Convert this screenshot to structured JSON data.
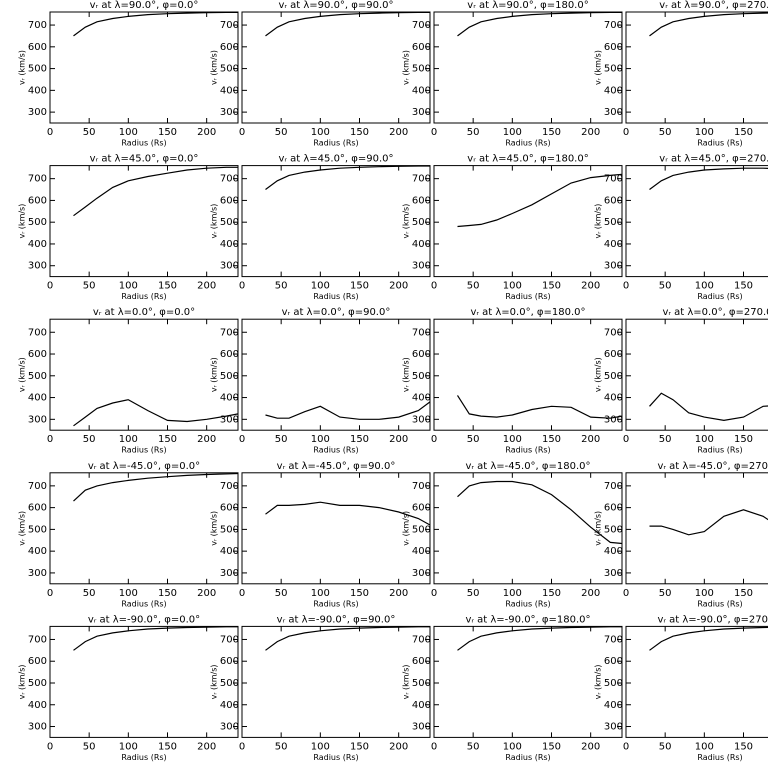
{
  "chart_data": [
    {
      "type": "line",
      "title": "vᵣ at λ=90.0°, φ=0.0°",
      "xlabel": "Radius (Rs)",
      "ylabel": "vᵣ (km/s)",
      "x": [
        30,
        45,
        60,
        80,
        100,
        125,
        150,
        175,
        200,
        225,
        240
      ],
      "values": [
        650,
        690,
        715,
        730,
        740,
        748,
        752,
        755,
        757,
        758,
        758
      ],
      "color": "#000000",
      "xlim": [
        0,
        240
      ],
      "ylim": [
        250,
        760
      ],
      "xticks": [
        0,
        50,
        100,
        150,
        200
      ],
      "yticks": [
        300,
        400,
        500,
        600,
        700
      ]
    },
    {
      "type": "line",
      "title": "vᵣ at λ=90.0°, φ=90.0°",
      "xlabel": "Radius (Rs)",
      "ylabel": "vᵣ (km/s)",
      "x": [
        30,
        45,
        60,
        80,
        100,
        125,
        150,
        175,
        200,
        225,
        240
      ],
      "values": [
        650,
        690,
        715,
        730,
        740,
        748,
        752,
        755,
        757,
        758,
        758
      ],
      "color": "#000000",
      "xlim": [
        0,
        240
      ],
      "ylim": [
        250,
        760
      ],
      "xticks": [
        0,
        50,
        100,
        150,
        200
      ],
      "yticks": [
        300,
        400,
        500,
        600,
        700
      ]
    },
    {
      "type": "line",
      "title": "vᵣ at λ=90.0°, φ=180.0°",
      "xlabel": "Radius (Rs)",
      "ylabel": "vᵣ (km/s)",
      "x": [
        30,
        45,
        60,
        80,
        100,
        125,
        150,
        175,
        200,
        225,
        240
      ],
      "values": [
        650,
        690,
        715,
        730,
        740,
        748,
        752,
        755,
        757,
        758,
        758
      ],
      "color": "#000000",
      "xlim": [
        0,
        240
      ],
      "ylim": [
        250,
        760
      ],
      "xticks": [
        0,
        50,
        100,
        150,
        200
      ],
      "yticks": [
        300,
        400,
        500,
        600,
        700
      ]
    },
    {
      "type": "line",
      "title": "vᵣ at λ=90.0°, φ=270.0°",
      "xlabel": "Radius (Rs)",
      "ylabel": "vᵣ (km/s)",
      "x": [
        30,
        45,
        60,
        80,
        100,
        125,
        150,
        175,
        200,
        225,
        240
      ],
      "values": [
        650,
        690,
        715,
        730,
        740,
        748,
        752,
        755,
        757,
        758,
        758
      ],
      "color": "#000000",
      "xlim": [
        0,
        240
      ],
      "ylim": [
        250,
        760
      ],
      "xticks": [
        0,
        50,
        100,
        150,
        200
      ],
      "yticks": [
        300,
        400,
        500,
        600,
        700
      ]
    },
    {
      "type": "line",
      "title": "vᵣ at λ=45.0°, φ=0.0°",
      "xlabel": "Radius (Rs)",
      "ylabel": "vᵣ (km/s)",
      "x": [
        30,
        45,
        60,
        80,
        100,
        125,
        150,
        175,
        200,
        225,
        240
      ],
      "values": [
        530,
        570,
        610,
        660,
        690,
        710,
        725,
        740,
        748,
        752,
        752
      ],
      "color": "#000000",
      "xlim": [
        0,
        240
      ],
      "ylim": [
        250,
        760
      ],
      "xticks": [
        0,
        50,
        100,
        150,
        200
      ],
      "yticks": [
        300,
        400,
        500,
        600,
        700
      ]
    },
    {
      "type": "line",
      "title": "vᵣ at λ=45.0°, φ=90.0°",
      "xlabel": "Radius (Rs)",
      "ylabel": "vᵣ (km/s)",
      "x": [
        30,
        45,
        60,
        80,
        100,
        125,
        150,
        175,
        200,
        225,
        240
      ],
      "values": [
        650,
        690,
        715,
        730,
        740,
        748,
        752,
        755,
        757,
        758,
        758
      ],
      "color": "#000000",
      "xlim": [
        0,
        240
      ],
      "ylim": [
        250,
        760
      ],
      "xticks": [
        0,
        50,
        100,
        150,
        200
      ],
      "yticks": [
        300,
        400,
        500,
        600,
        700
      ]
    },
    {
      "type": "line",
      "title": "vᵣ at λ=45.0°, φ=180.0°",
      "xlabel": "Radius (Rs)",
      "ylabel": "vᵣ (km/s)",
      "x": [
        30,
        45,
        60,
        80,
        100,
        125,
        150,
        175,
        200,
        225,
        240
      ],
      "values": [
        480,
        485,
        490,
        510,
        540,
        580,
        630,
        680,
        705,
        715,
        720
      ],
      "color": "#000000",
      "xlim": [
        0,
        240
      ],
      "ylim": [
        250,
        760
      ],
      "xticks": [
        0,
        50,
        100,
        150,
        200
      ],
      "yticks": [
        300,
        400,
        500,
        600,
        700
      ]
    },
    {
      "type": "line",
      "title": "vᵣ at λ=45.0°, φ=270.0°",
      "xlabel": "Radius (Rs)",
      "ylabel": "vᵣ (km/s)",
      "x": [
        30,
        45,
        60,
        80,
        100,
        125,
        150,
        175,
        200,
        225,
        240
      ],
      "values": [
        650,
        690,
        715,
        730,
        740,
        745,
        748,
        748,
        745,
        740,
        735
      ],
      "color": "#000000",
      "xlim": [
        0,
        240
      ],
      "ylim": [
        250,
        760
      ],
      "xticks": [
        0,
        50,
        100,
        150,
        200
      ],
      "yticks": [
        300,
        400,
        500,
        600,
        700
      ]
    },
    {
      "type": "line",
      "title": "vᵣ at λ=0.0°, φ=0.0°",
      "xlabel": "Radius (Rs)",
      "ylabel": "vᵣ (km/s)",
      "x": [
        30,
        45,
        60,
        80,
        100,
        125,
        150,
        175,
        200,
        225,
        240
      ],
      "values": [
        270,
        310,
        350,
        375,
        390,
        340,
        295,
        290,
        300,
        315,
        325
      ],
      "color": "#000000",
      "xlim": [
        0,
        240
      ],
      "ylim": [
        250,
        760
      ],
      "xticks": [
        0,
        50,
        100,
        150,
        200
      ],
      "yticks": [
        300,
        400,
        500,
        600,
        700
      ]
    },
    {
      "type": "line",
      "title": "vᵣ at λ=0.0°, φ=90.0°",
      "xlabel": "Radius (Rs)",
      "ylabel": "vᵣ (km/s)",
      "x": [
        30,
        45,
        60,
        80,
        100,
        125,
        150,
        175,
        200,
        225,
        240
      ],
      "values": [
        320,
        305,
        305,
        335,
        360,
        310,
        300,
        300,
        310,
        340,
        380
      ],
      "color": "#000000",
      "xlim": [
        0,
        240
      ],
      "ylim": [
        250,
        760
      ],
      "xticks": [
        0,
        50,
        100,
        150,
        200
      ],
      "yticks": [
        300,
        400,
        500,
        600,
        700
      ]
    },
    {
      "type": "line",
      "title": "vᵣ at λ=0.0°, φ=180.0°",
      "xlabel": "Radius (Rs)",
      "ylabel": "vᵣ (km/s)",
      "x": [
        30,
        45,
        60,
        80,
        100,
        125,
        150,
        175,
        200,
        225,
        240
      ],
      "values": [
        410,
        325,
        315,
        310,
        320,
        345,
        360,
        355,
        310,
        305,
        315
      ],
      "color": "#000000",
      "xlim": [
        0,
        240
      ],
      "ylim": [
        250,
        760
      ],
      "xticks": [
        0,
        50,
        100,
        150,
        200
      ],
      "yticks": [
        300,
        400,
        500,
        600,
        700
      ]
    },
    {
      "type": "line",
      "title": "vᵣ at λ=0.0°, φ=270.0°",
      "xlabel": "Radius (Rs)",
      "ylabel": "vᵣ (km/s)",
      "x": [
        30,
        45,
        60,
        80,
        100,
        125,
        150,
        175,
        200,
        225,
        240
      ],
      "values": [
        360,
        420,
        390,
        330,
        310,
        295,
        310,
        360,
        365,
        345,
        340
      ],
      "color": "#000000",
      "xlim": [
        0,
        240
      ],
      "ylim": [
        250,
        760
      ],
      "xticks": [
        0,
        50,
        100,
        150,
        200
      ],
      "yticks": [
        300,
        400,
        500,
        600,
        700
      ]
    },
    {
      "type": "line",
      "title": "vᵣ at λ=-45.0°, φ=0.0°",
      "xlabel": "Radius (Rs)",
      "ylabel": "vᵣ (km/s)",
      "x": [
        30,
        45,
        60,
        80,
        100,
        125,
        150,
        175,
        200,
        225,
        240
      ],
      "values": [
        630,
        680,
        700,
        715,
        725,
        735,
        742,
        748,
        752,
        755,
        757
      ],
      "color": "#000000",
      "xlim": [
        0,
        240
      ],
      "ylim": [
        250,
        760
      ],
      "xticks": [
        0,
        50,
        100,
        150,
        200
      ],
      "yticks": [
        300,
        400,
        500,
        600,
        700
      ]
    },
    {
      "type": "line",
      "title": "vᵣ at λ=-45.0°, φ=90.0°",
      "xlabel": "Radius (Rs)",
      "ylabel": "vᵣ (km/s)",
      "x": [
        30,
        45,
        60,
        80,
        100,
        125,
        150,
        175,
        200,
        225,
        240
      ],
      "values": [
        570,
        610,
        610,
        615,
        625,
        610,
        610,
        600,
        580,
        550,
        520
      ],
      "color": "#000000",
      "xlim": [
        0,
        240
      ],
      "ylim": [
        250,
        760
      ],
      "xticks": [
        0,
        50,
        100,
        150,
        200
      ],
      "yticks": [
        300,
        400,
        500,
        600,
        700
      ]
    },
    {
      "type": "line",
      "title": "vᵣ at λ=-45.0°, φ=180.0°",
      "xlabel": "Radius (Rs)",
      "ylabel": "vᵣ (km/s)",
      "x": [
        30,
        45,
        60,
        80,
        100,
        125,
        150,
        175,
        200,
        225,
        240
      ],
      "values": [
        650,
        700,
        715,
        720,
        720,
        705,
        660,
        590,
        510,
        440,
        435
      ],
      "color": "#000000",
      "xlim": [
        0,
        240
      ],
      "ylim": [
        250,
        760
      ],
      "xticks": [
        0,
        50,
        100,
        150,
        200
      ],
      "yticks": [
        300,
        400,
        500,
        600,
        700
      ]
    },
    {
      "type": "line",
      "title": "vᵣ at λ=-45.0°, φ=270.0°",
      "xlabel": "Radius (Rs)",
      "ylabel": "vᵣ (km/s)",
      "x": [
        30,
        45,
        60,
        80,
        100,
        125,
        150,
        175,
        200,
        225,
        240
      ],
      "values": [
        515,
        515,
        500,
        475,
        490,
        560,
        590,
        560,
        500,
        480,
        485
      ],
      "color": "#000000",
      "xlim": [
        0,
        240
      ],
      "ylim": [
        250,
        760
      ],
      "xticks": [
        0,
        50,
        100,
        150,
        200
      ],
      "yticks": [
        300,
        400,
        500,
        600,
        700
      ]
    },
    {
      "type": "line",
      "title": "vᵣ at λ=-90.0°, φ=0.0°",
      "xlabel": "Radius (Rs)",
      "ylabel": "vᵣ (km/s)",
      "x": [
        30,
        45,
        60,
        80,
        100,
        125,
        150,
        175,
        200,
        225,
        240
      ],
      "values": [
        650,
        690,
        715,
        730,
        740,
        748,
        752,
        755,
        757,
        758,
        758
      ],
      "color": "#000000",
      "xlim": [
        0,
        240
      ],
      "ylim": [
        250,
        760
      ],
      "xticks": [
        0,
        50,
        100,
        150,
        200
      ],
      "yticks": [
        300,
        400,
        500,
        600,
        700
      ]
    },
    {
      "type": "line",
      "title": "vᵣ at λ=-90.0°, φ=90.0°",
      "xlabel": "Radius (Rs)",
      "ylabel": "vᵣ (km/s)",
      "x": [
        30,
        45,
        60,
        80,
        100,
        125,
        150,
        175,
        200,
        225,
        240
      ],
      "values": [
        650,
        690,
        715,
        730,
        740,
        748,
        752,
        755,
        757,
        758,
        758
      ],
      "color": "#000000",
      "xlim": [
        0,
        240
      ],
      "ylim": [
        250,
        760
      ],
      "xticks": [
        0,
        50,
        100,
        150,
        200
      ],
      "yticks": [
        300,
        400,
        500,
        600,
        700
      ]
    },
    {
      "type": "line",
      "title": "vᵣ at λ=-90.0°, φ=180.0°",
      "xlabel": "Radius (Rs)",
      "ylabel": "vᵣ (km/s)",
      "x": [
        30,
        45,
        60,
        80,
        100,
        125,
        150,
        175,
        200,
        225,
        240
      ],
      "values": [
        650,
        690,
        715,
        730,
        740,
        748,
        752,
        755,
        757,
        758,
        758
      ],
      "color": "#000000",
      "xlim": [
        0,
        240
      ],
      "ylim": [
        250,
        760
      ],
      "xticks": [
        0,
        50,
        100,
        150,
        200
      ],
      "yticks": [
        300,
        400,
        500,
        600,
        700
      ]
    },
    {
      "type": "line",
      "title": "vᵣ at λ=-90.0°, φ=270.0°",
      "xlabel": "Radius (Rs)",
      "ylabel": "vᵣ (km/s)",
      "x": [
        30,
        45,
        60,
        80,
        100,
        125,
        150,
        175,
        200,
        225,
        240
      ],
      "values": [
        650,
        690,
        715,
        730,
        740,
        748,
        752,
        755,
        757,
        758,
        758
      ],
      "color": "#000000",
      "xlim": [
        0,
        240
      ],
      "ylim": [
        250,
        760
      ],
      "xticks": [
        0,
        50,
        100,
        150,
        200
      ],
      "yticks": [
        300,
        400,
        500,
        600,
        700
      ]
    }
  ]
}
